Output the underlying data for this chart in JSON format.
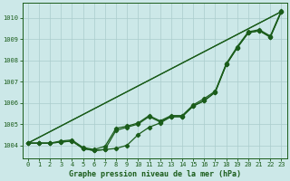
{
  "title": "Graphe pression niveau de la mer (hPa)",
  "background_color": "#cce8e8",
  "grid_color": "#aacccc",
  "line_color": "#1a5c1a",
  "xlim": [
    -0.5,
    23.5
  ],
  "ylim": [
    1003.4,
    1010.7
  ],
  "yticks": [
    1004,
    1005,
    1006,
    1007,
    1008,
    1009,
    1010
  ],
  "xticks": [
    0,
    1,
    2,
    3,
    4,
    5,
    6,
    7,
    8,
    9,
    10,
    11,
    12,
    13,
    14,
    15,
    16,
    17,
    18,
    19,
    20,
    21,
    22,
    23
  ],
  "straight1": {
    "x": [
      0,
      23
    ],
    "y": [
      1004.1,
      1010.3
    ]
  },
  "straight2": {
    "x": [
      0,
      23
    ],
    "y": [
      1004.1,
      1010.3
    ]
  },
  "curve1": [
    1004.1,
    1004.1,
    1004.1,
    1004.15,
    1004.2,
    1003.85,
    1003.75,
    1003.8,
    1003.85,
    1004.0,
    1004.5,
    1004.85,
    1005.05,
    1005.35,
    1005.35,
    1005.85,
    1006.1,
    1006.5,
    1007.8,
    1008.6,
    1009.3,
    1009.4,
    1009.1,
    1010.3
  ],
  "curve2": [
    1004.1,
    1004.1,
    1004.1,
    1004.15,
    1004.2,
    1003.85,
    1003.75,
    1003.8,
    1004.7,
    1004.85,
    1005.0,
    1005.35,
    1005.1,
    1005.35,
    1005.35,
    1005.85,
    1006.1,
    1006.5,
    1007.8,
    1008.6,
    1009.3,
    1009.4,
    1009.1,
    1010.3
  ],
  "curve3": [
    1004.1,
    1004.1,
    1004.1,
    1004.2,
    1004.25,
    1003.9,
    1003.8,
    1003.95,
    1004.8,
    1004.9,
    1005.05,
    1005.4,
    1005.15,
    1005.4,
    1005.4,
    1005.9,
    1006.2,
    1006.55,
    1007.85,
    1008.65,
    1009.35,
    1009.45,
    1009.15,
    1010.35
  ],
  "marker_style": "D",
  "marker_size": 2.2,
  "line_width": 0.9,
  "tick_fontsize": 5,
  "xlabel_fontsize": 6
}
